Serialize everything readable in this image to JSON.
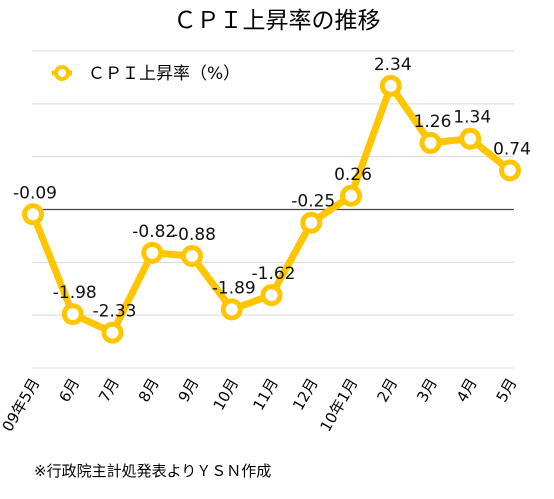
{
  "chart_data": {
    "type": "line",
    "title": "ＣＰＩ上昇率の推移",
    "xlabel": "",
    "ylabel": "",
    "categories": [
      "09年5月",
      "6月",
      "7月",
      "8月",
      "9月",
      "10月",
      "11月",
      "12月",
      "10年1月",
      "2月",
      "3月",
      "4月",
      "5月"
    ],
    "series": [
      {
        "name": "ＣＰＩ上昇率（%）",
        "values": [
          -0.09,
          -1.98,
          -2.33,
          -0.82,
          -0.88,
          -1.89,
          -1.62,
          -0.25,
          0.26,
          2.34,
          1.26,
          1.34,
          0.74
        ]
      }
    ],
    "data_labels": [
      "-0.09",
      "-1.98",
      "-2.33",
      "-0.82",
      "-0.88",
      "-1.89",
      "-1.62",
      "-0.25",
      "0.26",
      "2.34",
      "1.26",
      "1.34",
      "0.74"
    ],
    "ylim": [
      -3,
      3
    ],
    "grid": true,
    "legend_position": "top-left",
    "line_color": "#FFC600",
    "gridline_color": "#D9D9D9",
    "axis_color": "#444444",
    "source": "※行政院主計処発表よりＹＳＮ作成"
  }
}
